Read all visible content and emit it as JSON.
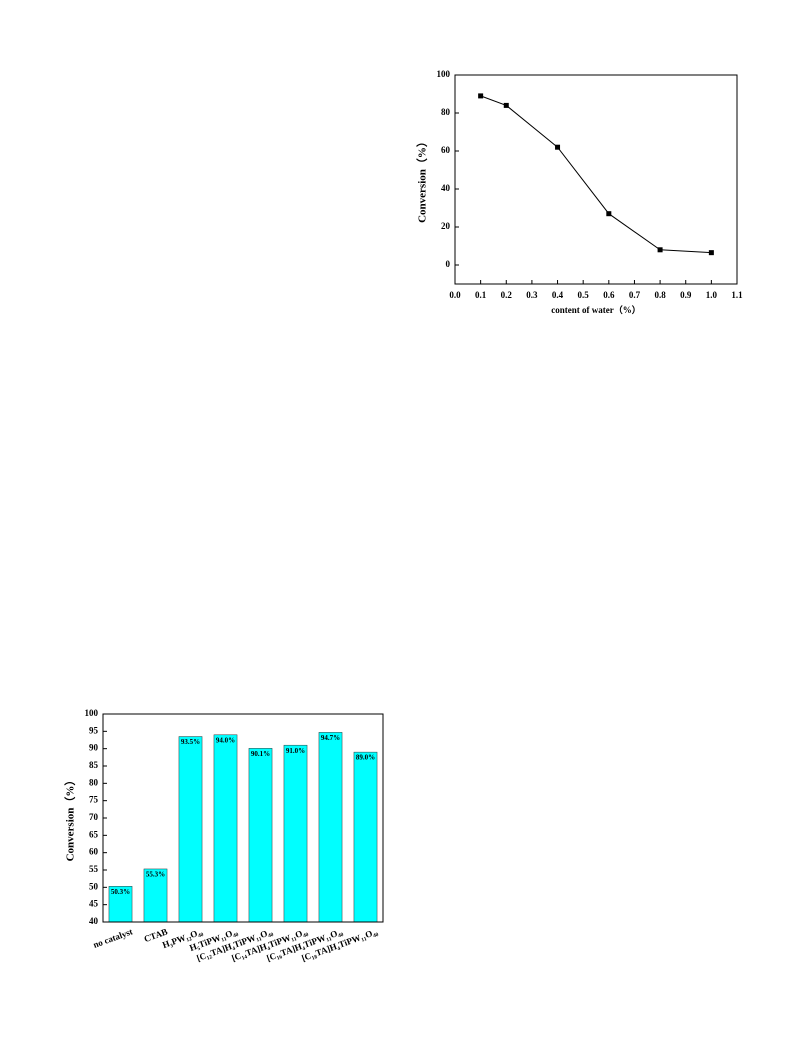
{
  "chart_data": [
    {
      "type": "line",
      "xlabel": "content of water（%）",
      "ylabel": "Conversion（%）",
      "x": [
        0.1,
        0.2,
        0.4,
        0.6,
        0.8,
        1.0
      ],
      "series": [
        {
          "color": "#000000",
          "values": [
            89,
            84,
            62,
            27,
            8,
            6.5
          ]
        }
      ],
      "xlim": [
        0,
        1.1
      ],
      "xticks": [
        {
          "value": 0,
          "label": "0.0"
        },
        0.1,
        0.2,
        0.3,
        0.4,
        0.5,
        0.6,
        0.7,
        0.8,
        0.9,
        {
          "value": 1,
          "label": "1.0"
        },
        1.1
      ],
      "ylim": [
        -10,
        100
      ],
      "yticks": [
        0,
        20,
        40,
        60,
        80,
        100
      ]
    },
    {
      "type": "bar",
      "ylabel": "Conversion（%）",
      "categories": [
        "no catalyst",
        "CTAB",
        "H₃PW₁₂O₄₀",
        "H₅TiPW₁₁O₄₀",
        "[C₁₂TA]H₄TiPW₁₁O₄₀",
        "[C₁₄TA]H₄TiPW₁₁O₄₀",
        "[C₁₆TA]H₄TiPW₁₁O₄₀",
        "[C₁₈TA]H₄TiPW₁₁O₄₀"
      ],
      "values": [
        50.3,
        55.3,
        93.5,
        94.0,
        90.1,
        91.0,
        94.7,
        89.0
      ],
      "value_labels": [
        "50.3%",
        "55.3%",
        "93.5%",
        "94.0%",
        "90.1%",
        "91.0%",
        "94.7%",
        "89.0%"
      ],
      "color": "#00ffff",
      "ylim": [
        40,
        100
      ],
      "yticks": [
        40,
        45,
        50,
        55,
        60,
        65,
        70,
        75,
        80,
        85,
        90,
        95,
        100
      ]
    }
  ]
}
